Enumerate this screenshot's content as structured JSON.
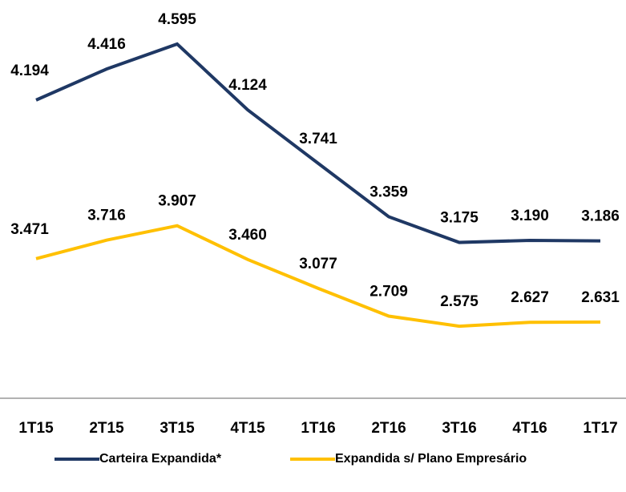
{
  "chart_data": {
    "type": "line",
    "categories": [
      "1T15",
      "2T15",
      "3T15",
      "4T15",
      "1T16",
      "2T16",
      "3T16",
      "4T16",
      "1T17"
    ],
    "series": [
      {
        "name": "Carteira Expandida*",
        "color": "#1f3864",
        "values": [
          4.194,
          4.416,
          4.595,
          4.124,
          3.741,
          3.359,
          3.175,
          3.19,
          3.186
        ],
        "value_labels": [
          "4.194",
          "4.416",
          "4.595",
          "4.124",
          "3.741",
          "3.359",
          "3.175",
          "3.190",
          "3.186"
        ]
      },
      {
        "name": "Expandida s/ Plano Empresário",
        "color": "#ffc000",
        "axis": "y2",
        "values": [
          3.471,
          3.716,
          3.907,
          3.46,
          3.077,
          2.709,
          2.575,
          2.627,
          2.631
        ],
        "value_labels": [
          "3.471",
          "3.716",
          "3.907",
          "3.460",
          "3.077",
          "2.709",
          "2.575",
          "2.627",
          "2.631"
        ]
      }
    ],
    "ylim": [
      2.06,
      4.91
    ],
    "y2lim": [
      1.62,
      6.9
    ]
  }
}
